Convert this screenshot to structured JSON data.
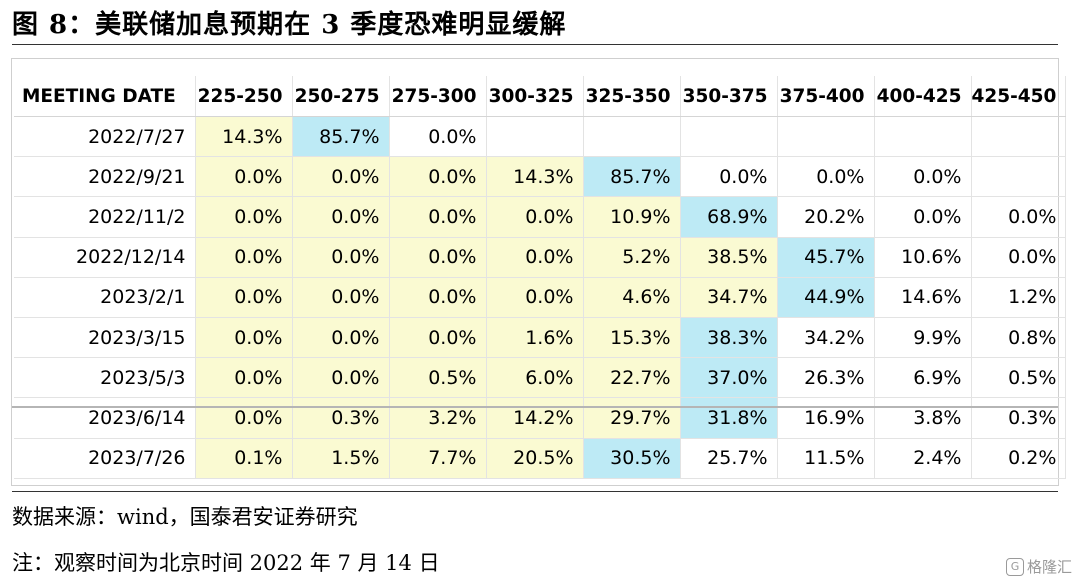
{
  "figure": {
    "title": "图 8：美联储加息预期在 3 季度恐难明显缓解",
    "source": "数据来源：wind，国泰君安证券研究",
    "note": "注：观察时间为北京时间 2022 年 7 月 14 日",
    "watermark": "格隆汇"
  },
  "chart_data": {
    "type": "table",
    "columns": [
      "MEETING DATE",
      "225-250",
      "250-275",
      "275-300",
      "300-325",
      "325-350",
      "350-375",
      "375-400",
      "400-425",
      "425-450"
    ],
    "rows": [
      {
        "date": "2022/7/27",
        "cells": [
          "14.3%",
          "85.7%",
          "0.0%",
          "",
          "",
          "",
          "",
          "",
          ""
        ],
        "hl": [
          "y",
          "b",
          "",
          "",
          "",
          "",
          "",
          "",
          ""
        ]
      },
      {
        "date": "2022/9/21",
        "cells": [
          "0.0%",
          "0.0%",
          "0.0%",
          "14.3%",
          "85.7%",
          "0.0%",
          "0.0%",
          "0.0%",
          ""
        ],
        "hl": [
          "y",
          "y",
          "y",
          "y",
          "b",
          "",
          "",
          "",
          ""
        ]
      },
      {
        "date": "2022/11/2",
        "cells": [
          "0.0%",
          "0.0%",
          "0.0%",
          "0.0%",
          "10.9%",
          "68.9%",
          "20.2%",
          "0.0%",
          "0.0%"
        ],
        "hl": [
          "y",
          "y",
          "y",
          "y",
          "y",
          "b",
          "",
          "",
          ""
        ]
      },
      {
        "date": "2022/12/14",
        "cells": [
          "0.0%",
          "0.0%",
          "0.0%",
          "0.0%",
          "5.2%",
          "38.5%",
          "45.7%",
          "10.6%",
          "0.0%"
        ],
        "hl": [
          "y",
          "y",
          "y",
          "y",
          "y",
          "y",
          "b",
          "",
          ""
        ]
      },
      {
        "date": "2023/2/1",
        "cells": [
          "0.0%",
          "0.0%",
          "0.0%",
          "0.0%",
          "4.6%",
          "34.7%",
          "44.9%",
          "14.6%",
          "1.2%"
        ],
        "hl": [
          "y",
          "y",
          "y",
          "y",
          "y",
          "y",
          "b",
          "",
          ""
        ]
      },
      {
        "date": "2023/3/15",
        "cells": [
          "0.0%",
          "0.0%",
          "0.0%",
          "1.6%",
          "15.3%",
          "38.3%",
          "34.2%",
          "9.9%",
          "0.8%"
        ],
        "hl": [
          "y",
          "y",
          "y",
          "y",
          "y",
          "b",
          "",
          "",
          ""
        ]
      },
      {
        "date": "2023/5/3",
        "cells": [
          "0.0%",
          "0.0%",
          "0.5%",
          "6.0%",
          "22.7%",
          "37.0%",
          "26.3%",
          "6.9%",
          "0.5%"
        ],
        "hl": [
          "y",
          "y",
          "y",
          "y",
          "y",
          "b",
          "",
          "",
          ""
        ]
      },
      {
        "date": "2023/6/14",
        "cells": [
          "0.0%",
          "0.3%",
          "3.2%",
          "14.2%",
          "29.7%",
          "31.8%",
          "16.9%",
          "3.8%",
          "0.3%"
        ],
        "hl": [
          "y",
          "y",
          "y",
          "y",
          "y",
          "b",
          "",
          "",
          ""
        ]
      },
      {
        "date": "2023/7/26",
        "cells": [
          "0.1%",
          "1.5%",
          "7.7%",
          "20.5%",
          "30.5%",
          "25.7%",
          "11.5%",
          "2.4%",
          "0.2%"
        ],
        "hl": [
          "y",
          "y",
          "y",
          "y",
          "b",
          "",
          "",
          "",
          ""
        ]
      }
    ],
    "highlight_colors": {
      "y": "#fafad2",
      "b": "#bdeaf5"
    }
  }
}
